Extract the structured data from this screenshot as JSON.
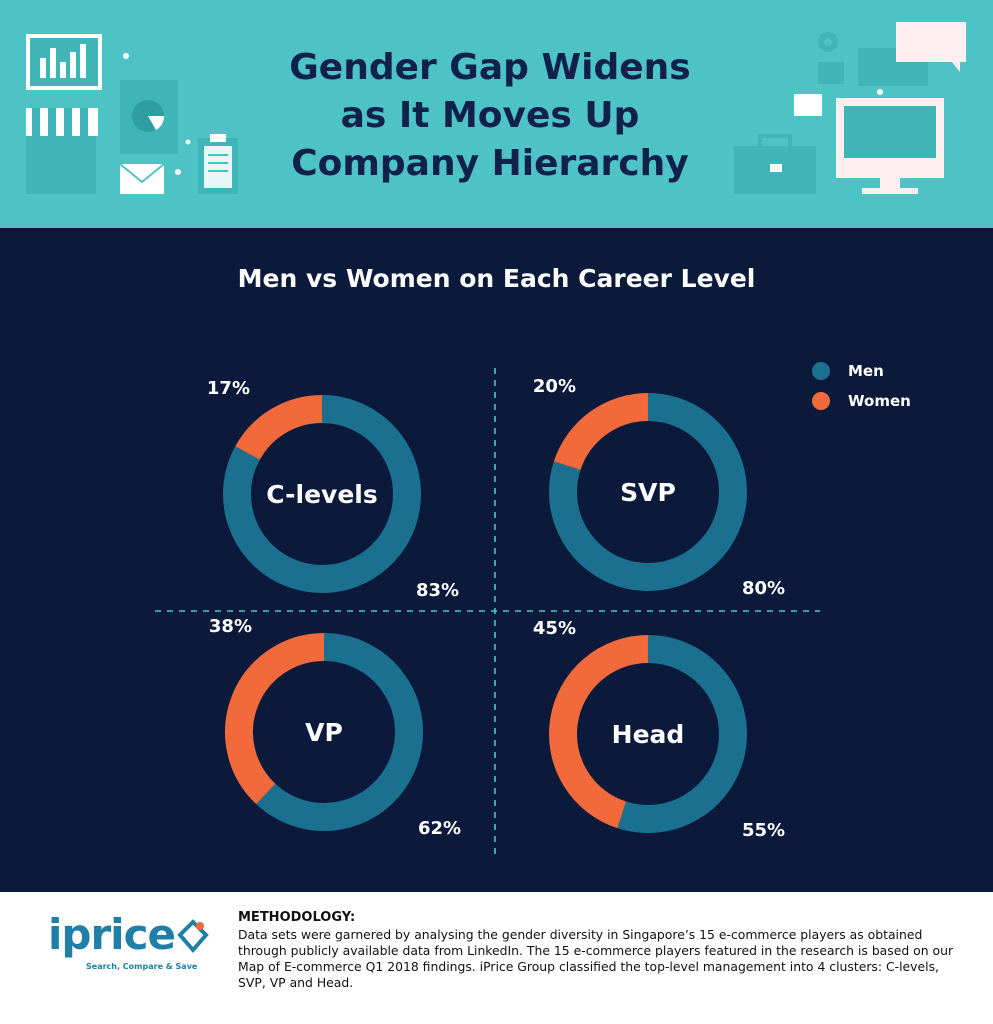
{
  "header": {
    "title_lines": [
      "Gender Gap Widens",
      "as It Moves Up",
      "Company Hierarchy"
    ]
  },
  "colors": {
    "header_bg": "#4ec3c5",
    "main_bg": "#0b1a3a",
    "men": "#1b6f8f",
    "women": "#f26a3c",
    "title_text": "#12214a",
    "logo": "#1f7fa6"
  },
  "legend": {
    "men": "Men",
    "women": "Women"
  },
  "chart_data": {
    "type": "pie",
    "title": "Men vs Women on Each Career Level",
    "series_names": [
      "Men",
      "Women"
    ],
    "charts": [
      {
        "label": "C-levels",
        "men": 83,
        "women": 17,
        "men_label": "83%",
        "women_label": "17%"
      },
      {
        "label": "SVP",
        "men": 80,
        "women": 20,
        "men_label": "80%",
        "women_label": "20%"
      },
      {
        "label": "VP",
        "men": 62,
        "women": 38,
        "men_label": "62%",
        "women_label": "38%"
      },
      {
        "label": "Head",
        "men": 55,
        "women": 45,
        "men_label": "55%",
        "women_label": "45%"
      }
    ]
  },
  "footer": {
    "logo_word": "iprice",
    "logo_tagline": "Search, Compare & Save",
    "methodology_title": "METHODOLOGY:",
    "methodology_text": "Data sets were garnered by analysing the gender diversity in Singapore’s 15 e-commerce players as obtained through publicly available data from LinkedIn. The 15 e-commerce players featured in the research is based on our Map of E-commerce Q1 2018 findings. iPrice Group classified the top-level management into 4 clusters: C-levels, SVP, VP and Head."
  }
}
